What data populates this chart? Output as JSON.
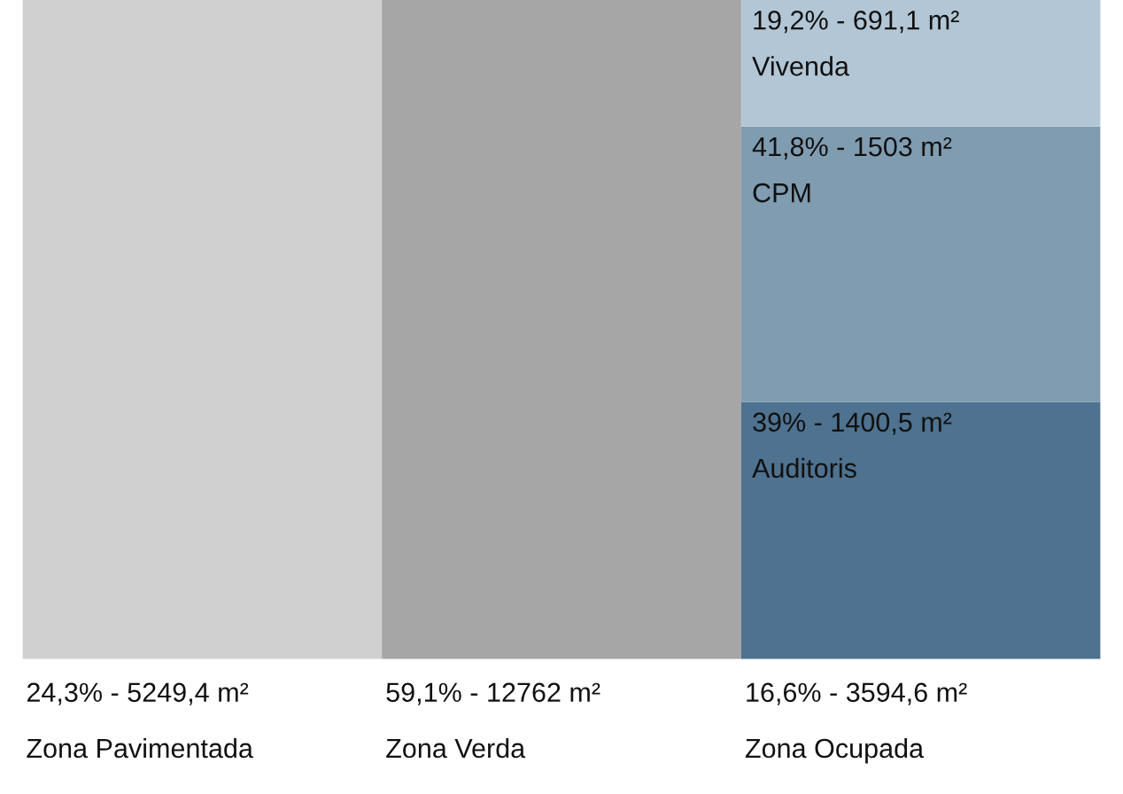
{
  "chart_data": {
    "type": "other",
    "categories": [
      "Zona Pavimentada",
      "Zona Verda",
      "Zona Ocupada"
    ],
    "series": [
      {
        "colors": [
          "#d0d0d0",
          "#a6a6a6",
          null
        ],
        "values": [
          24.3,
          59.1,
          null
        ],
        "value_labels": [
          "24,3% - 5249,4 m²",
          "59,1% - 12762 m²",
          null
        ]
      },
      {
        "name": "Auditoris",
        "color": "#4e728f",
        "values": [
          null,
          null,
          39
        ],
        "value_labels": [
          null,
          null,
          "39% - 1400,5 m²"
        ]
      },
      {
        "name": "CPM",
        "color": "#7f9cb1",
        "values": [
          null,
          null,
          41.8
        ],
        "value_labels": [
          null,
          null,
          "41,8% - 1503 m²"
        ]
      },
      {
        "name": "Vivenda",
        "color": "#b3c6d5",
        "values": [
          null,
          null,
          19.2
        ],
        "value_labels": [
          null,
          null,
          "19,2% - 691,1 m²"
        ]
      }
    ],
    "annotations": [
      "16,6% - 3594,6 m²"
    ]
  }
}
